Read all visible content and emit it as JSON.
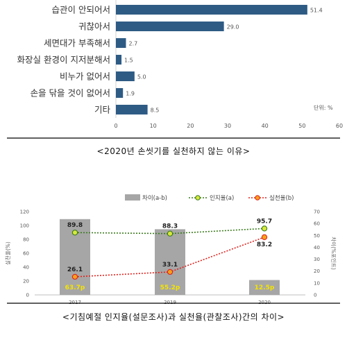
{
  "chart_data": [
    {
      "type": "bar",
      "orientation": "horizontal",
      "categories": [
        "습관이 안되어서",
        "귀찮아서",
        "세면대가 부족해서",
        "화장실 환경이 지저분해서",
        "비누가 없어서",
        "손을 닦을 것이 없어서",
        "기타"
      ],
      "values": [
        51.4,
        29.0,
        2.7,
        1.5,
        5.0,
        1.9,
        8.5
      ],
      "value_labels": [
        "51.4",
        "29.0",
        "2.7",
        "1.5",
        "5.0",
        "1.9",
        "8.5"
      ],
      "xlim": [
        0,
        60
      ],
      "xticks": [
        "0",
        "10",
        "20",
        "30",
        "40",
        "50",
        "60"
      ],
      "unit_note": "단위: %",
      "caption": "<2020년 손씻기를 실천하지 않는 이유>",
      "bar_color": "#2e5b84"
    },
    {
      "type": "bar+line",
      "categories": [
        "2017",
        "2019",
        "2020"
      ],
      "legend": [
        "차이(a-b)",
        "인지율(a)",
        "실천율(b)"
      ],
      "series": [
        {
          "name": "차이(a-b)",
          "type": "bar",
          "axis": "right",
          "values": [
            63.7,
            55.2,
            12.5
          ],
          "labels": [
            "63.7p",
            "55.2p",
            "12.5p"
          ],
          "color": "#a6a6a6"
        },
        {
          "name": "인지율(a)",
          "type": "line",
          "axis": "left",
          "values": [
            89.8,
            88.3,
            95.7
          ],
          "labels": [
            "89.8",
            "88.3",
            "95.7"
          ],
          "color": "#3a7a1c"
        },
        {
          "name": "실천율(b)",
          "type": "line",
          "axis": "left",
          "values": [
            26.1,
            33.1,
            83.2
          ],
          "labels": [
            "26.1",
            "33.1",
            "83.2"
          ],
          "color": "#e0201b"
        }
      ],
      "ylabel_left": "실천율(%)",
      "ylabel_right": "차이(%포인트)",
      "ylim_left": [
        0,
        120
      ],
      "yticks_left": [
        "0",
        "20",
        "40",
        "60",
        "80",
        "100",
        "120"
      ],
      "ylim_right": [
        0,
        70
      ],
      "yticks_right": [
        "0",
        "10",
        "20",
        "30",
        "40",
        "50",
        "60",
        "70"
      ],
      "caption": "<기침예절 인지율(설문조사)과 실천율(관찰조사)간의 차이>",
      "bar_label_color": "#f5e400"
    }
  ]
}
